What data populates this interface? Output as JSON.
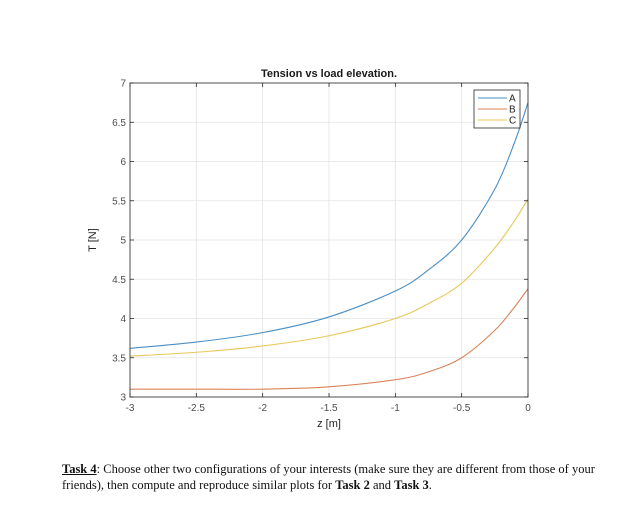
{
  "chart_data": {
    "type": "line",
    "title": "Tension vs load elevation.",
    "xlabel": "z [m]",
    "ylabel": "T [N]",
    "xlim": [
      -3,
      0
    ],
    "ylim": [
      3,
      7
    ],
    "xticks": [
      -3,
      -2.5,
      -2,
      -1.5,
      -1,
      -0.5,
      0
    ],
    "xtick_labels": [
      "-3",
      "-2.5",
      "-2",
      "-1.5",
      "-1",
      "-0.5",
      "0"
    ],
    "yticks": [
      3,
      3.5,
      4,
      4.5,
      5,
      5.5,
      6,
      6.5,
      7
    ],
    "ytick_labels": [
      "3",
      "3.5",
      "4",
      "4.5",
      "5",
      "5.5",
      "6",
      "6.5",
      "7"
    ],
    "grid": true,
    "legend_position": "top-right",
    "x": [
      -3,
      -2.5,
      -2,
      -1.5,
      -1,
      -0.75,
      -0.5,
      -0.25,
      -0.1,
      0
    ],
    "series": [
      {
        "name": "A",
        "color": "#4a8fc4",
        "values": [
          3.62,
          3.7,
          3.82,
          4.02,
          4.35,
          4.62,
          5.0,
          5.65,
          6.25,
          6.75
        ]
      },
      {
        "name": "B",
        "color": "#d9835a",
        "values": [
          3.1,
          3.1,
          3.1,
          3.13,
          3.22,
          3.32,
          3.5,
          3.85,
          4.15,
          4.38
        ]
      },
      {
        "name": "C",
        "color": "#e8c85a",
        "values": [
          3.52,
          3.57,
          3.65,
          3.78,
          4.0,
          4.19,
          4.45,
          4.9,
          5.25,
          5.52
        ]
      }
    ]
  },
  "caption": {
    "task_label": "Task 4",
    "text_1": ": Choose other two configurations of your interests (make sure they are different from those of your friends), then compute and reproduce similar plots for ",
    "bold_1": "Task 2",
    "text_2": " and ",
    "bold_2": "Task 3",
    "text_3": "."
  }
}
